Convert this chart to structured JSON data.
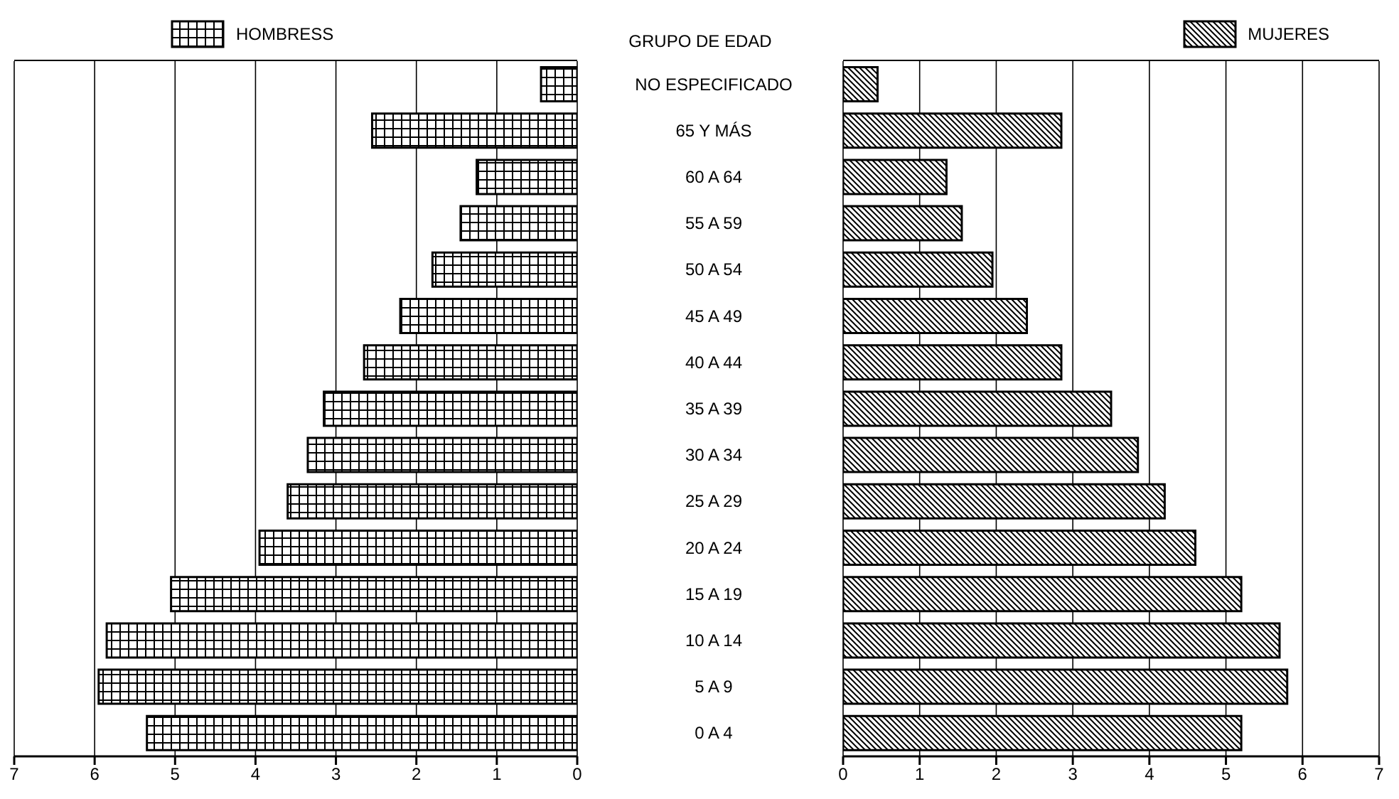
{
  "chart_data": [
    {
      "type": "bar",
      "orientation": "horizontal",
      "ylabel": "GRUPO DE EDAD",
      "categories": [
        "NO ESPECIFICADO",
        "65 Y MÁS",
        "60 A 64",
        "55 A 59",
        "50 A 54",
        "45 A 49",
        "40 A 44",
        "35 A 39",
        "30 A 34",
        "25 A 29",
        "20 A 24",
        "15 A 19",
        "10 A 14",
        "5 A 9",
        "0 A 4"
      ],
      "series": [
        {
          "name": "HOMBRESS",
          "color": "#000000",
          "values": [
            0.45,
            2.55,
            1.25,
            1.45,
            1.8,
            2.2,
            2.65,
            3.15,
            3.35,
            3.6,
            3.95,
            5.05,
            5.85,
            5.95,
            5.35
          ]
        }
      ],
      "xlim": [
        7,
        0
      ],
      "xticks": [
        0,
        1,
        2,
        3,
        4,
        5,
        6,
        7
      ],
      "grid": "x",
      "legend": "top left"
    },
    {
      "type": "bar",
      "orientation": "horizontal",
      "series": [
        {
          "name": "MUJERES",
          "color": "#000000",
          "values": [
            0.45,
            2.85,
            1.35,
            1.55,
            1.95,
            2.4,
            2.85,
            3.5,
            3.85,
            4.2,
            4.6,
            5.2,
            5.7,
            5.8,
            5.2
          ]
        }
      ],
      "xlim": [
        0,
        7
      ],
      "xticks": [
        0,
        1,
        2,
        3,
        4,
        5,
        6,
        7
      ],
      "grid": "x",
      "legend": "top right",
      "tick_labels": "x"
    }
  ]
}
